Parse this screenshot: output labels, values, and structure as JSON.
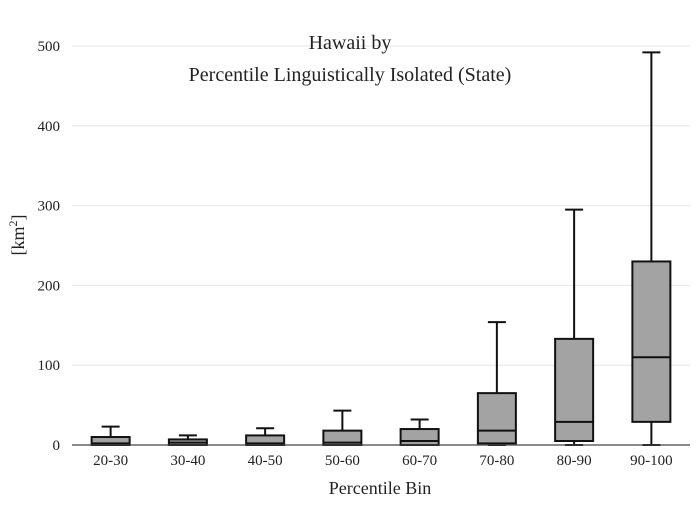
{
  "chart_data": {
    "type": "box",
    "title_lines": [
      "Hawaii  by",
      "Percentile Linguistically Isolated (State)"
    ],
    "xlabel": "Percentile Bin",
    "ylabel_base": "[km",
    "ylabel_sup": "2",
    "ylabel_close": "]",
    "ylim": [
      0,
      500
    ],
    "yticks": [
      0,
      100,
      200,
      300,
      400,
      500
    ],
    "grid": true,
    "colors": {
      "box_fill": "#a3a3a3",
      "box_stroke": "#111111",
      "grid": "#e6e6e6",
      "axis": "#444444"
    },
    "categories": [
      "20-30",
      "30-40",
      "40-50",
      "50-60",
      "60-70",
      "70-80",
      "80-90",
      "90-100"
    ],
    "boxes": [
      {
        "category": "20-30",
        "min": 0,
        "q1": 0,
        "median": 2,
        "q3": 10,
        "max": 23
      },
      {
        "category": "30-40",
        "min": 0,
        "q1": 0,
        "median": 3,
        "q3": 7,
        "max": 12
      },
      {
        "category": "40-50",
        "min": 0,
        "q1": 0,
        "median": 2,
        "q3": 12,
        "max": 21
      },
      {
        "category": "50-60",
        "min": 0,
        "q1": 0,
        "median": 3,
        "q3": 18,
        "max": 43
      },
      {
        "category": "60-70",
        "min": 0,
        "q1": 0,
        "median": 5,
        "q3": 20,
        "max": 32
      },
      {
        "category": "70-80",
        "min": 0,
        "q1": 2,
        "median": 18,
        "q3": 65,
        "max": 154
      },
      {
        "category": "80-90",
        "min": 0,
        "q1": 5,
        "median": 29,
        "q3": 133,
        "max": 295
      },
      {
        "category": "90-100",
        "min": 0,
        "q1": 29,
        "median": 110,
        "q3": 230,
        "max": 492
      }
    ]
  }
}
